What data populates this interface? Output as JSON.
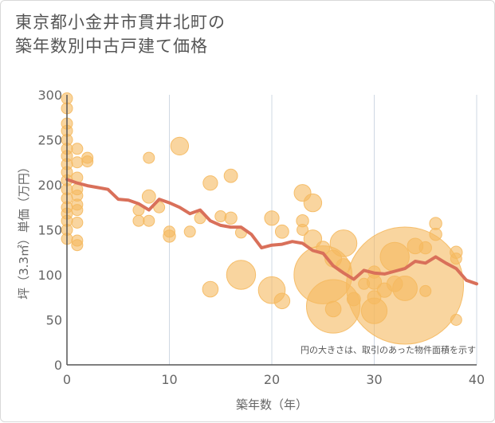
{
  "title": {
    "line1": "東京都小金井市貫井北町の",
    "line2": "築年数別中古戸建て価格"
  },
  "chart_data": {
    "type": "scatter",
    "xlabel": "築年数（年）",
    "ylabel": "坪（3.3㎡）単価（万円）",
    "xlim": [
      0,
      40
    ],
    "ylim": [
      0,
      300
    ],
    "xticks": [
      0,
      10,
      20,
      30,
      40
    ],
    "yticks": [
      0,
      50,
      100,
      150,
      200,
      250,
      300
    ],
    "grid": "vertical",
    "note": "円の大きさは、取引のあった物件面積を示す",
    "colors": {
      "bubble": "#f5b95f",
      "line": "#d9705a",
      "grid": "#cfd8e3",
      "axis": "#555555"
    },
    "bubbles": [
      {
        "x": 0,
        "y": 296,
        "s": 1
      },
      {
        "x": 0,
        "y": 285,
        "s": 1
      },
      {
        "x": 0,
        "y": 268,
        "s": 1
      },
      {
        "x": 0,
        "y": 260,
        "s": 1
      },
      {
        "x": 0,
        "y": 250,
        "s": 1
      },
      {
        "x": 0,
        "y": 240,
        "s": 1
      },
      {
        "x": 0,
        "y": 232,
        "s": 1
      },
      {
        "x": 0,
        "y": 223,
        "s": 1
      },
      {
        "x": 0,
        "y": 214,
        "s": 1
      },
      {
        "x": 0,
        "y": 205,
        "s": 1
      },
      {
        "x": 0,
        "y": 195,
        "s": 1
      },
      {
        "x": 0,
        "y": 185,
        "s": 1
      },
      {
        "x": 0,
        "y": 175,
        "s": 1
      },
      {
        "x": 0,
        "y": 168,
        "s": 1
      },
      {
        "x": 0,
        "y": 160,
        "s": 1
      },
      {
        "x": 0,
        "y": 150,
        "s": 1
      },
      {
        "x": 0,
        "y": 140,
        "s": 1
      },
      {
        "x": 1,
        "y": 240,
        "s": 1
      },
      {
        "x": 1,
        "y": 225,
        "s": 1
      },
      {
        "x": 1,
        "y": 208,
        "s": 1
      },
      {
        "x": 1,
        "y": 195,
        "s": 1
      },
      {
        "x": 1,
        "y": 188,
        "s": 1
      },
      {
        "x": 1,
        "y": 178,
        "s": 1
      },
      {
        "x": 1,
        "y": 172,
        "s": 1
      },
      {
        "x": 1,
        "y": 158,
        "s": 1
      },
      {
        "x": 1,
        "y": 138,
        "s": 1
      },
      {
        "x": 1,
        "y": 133,
        "s": 1
      },
      {
        "x": 2,
        "y": 230,
        "s": 1
      },
      {
        "x": 2,
        "y": 226,
        "s": 1
      },
      {
        "x": 7,
        "y": 172,
        "s": 1
      },
      {
        "x": 7,
        "y": 160,
        "s": 1
      },
      {
        "x": 8,
        "y": 230,
        "s": 1
      },
      {
        "x": 8,
        "y": 187,
        "s": 1.2
      },
      {
        "x": 8,
        "y": 160,
        "s": 1
      },
      {
        "x": 9,
        "y": 175,
        "s": 1
      },
      {
        "x": 10,
        "y": 148,
        "s": 1
      },
      {
        "x": 10,
        "y": 143,
        "s": 1.1
      },
      {
        "x": 11,
        "y": 243,
        "s": 1.6
      },
      {
        "x": 12,
        "y": 148,
        "s": 1
      },
      {
        "x": 13,
        "y": 163,
        "s": 1
      },
      {
        "x": 14,
        "y": 202,
        "s": 1.3
      },
      {
        "x": 14,
        "y": 84,
        "s": 1.4
      },
      {
        "x": 15,
        "y": 165,
        "s": 1
      },
      {
        "x": 16,
        "y": 210,
        "s": 1.2
      },
      {
        "x": 16,
        "y": 163,
        "s": 1.1
      },
      {
        "x": 17,
        "y": 147,
        "s": 1
      },
      {
        "x": 17,
        "y": 100,
        "s": 2.6
      },
      {
        "x": 20,
        "y": 163,
        "s": 1.3
      },
      {
        "x": 20,
        "y": 83,
        "s": 2.4
      },
      {
        "x": 21,
        "y": 148,
        "s": 1.2
      },
      {
        "x": 21,
        "y": 71,
        "s": 1.4
      },
      {
        "x": 23,
        "y": 191,
        "s": 1.5
      },
      {
        "x": 23,
        "y": 160,
        "s": 1.1
      },
      {
        "x": 23,
        "y": 150,
        "s": 1
      },
      {
        "x": 24,
        "y": 180,
        "s": 1.6
      },
      {
        "x": 24,
        "y": 140,
        "s": 1.6
      },
      {
        "x": 25,
        "y": 130,
        "s": 1.2
      },
      {
        "x": 25,
        "y": 100,
        "s": 5.2
      },
      {
        "x": 26,
        "y": 118,
        "s": 1.5
      },
      {
        "x": 26,
        "y": 65,
        "s": 4.8
      },
      {
        "x": 26,
        "y": 62,
        "s": 1.4
      },
      {
        "x": 27,
        "y": 135,
        "s": 2.4
      },
      {
        "x": 27,
        "y": 110,
        "s": 1.3
      },
      {
        "x": 28,
        "y": 73,
        "s": 1.2
      },
      {
        "x": 29,
        "y": 90,
        "s": 1
      },
      {
        "x": 30,
        "y": 103,
        "s": 1.1
      },
      {
        "x": 30,
        "y": 92,
        "s": 1.3
      },
      {
        "x": 30,
        "y": 75,
        "s": 1.2
      },
      {
        "x": 30,
        "y": 60,
        "s": 2.3
      },
      {
        "x": 31,
        "y": 83,
        "s": 1.3
      },
      {
        "x": 32,
        "y": 120,
        "s": 2.6
      },
      {
        "x": 32,
        "y": 90,
        "s": 1.4
      },
      {
        "x": 33,
        "y": 88,
        "s": 10.5
      },
      {
        "x": 33,
        "y": 85,
        "s": 2.2
      },
      {
        "x": 34,
        "y": 132,
        "s": 1.4
      },
      {
        "x": 35,
        "y": 130,
        "s": 1.1
      },
      {
        "x": 35,
        "y": 82,
        "s": 1
      },
      {
        "x": 36,
        "y": 157,
        "s": 1.1
      },
      {
        "x": 36,
        "y": 145,
        "s": 1.1
      },
      {
        "x": 38,
        "y": 125,
        "s": 1.1
      },
      {
        "x": 38,
        "y": 118,
        "s": 1
      },
      {
        "x": 38,
        "y": 50,
        "s": 1
      }
    ],
    "series": [
      {
        "x": [
          0,
          1,
          2,
          3,
          4,
          5,
          6,
          7,
          8,
          9,
          10,
          11,
          12,
          13,
          14,
          15,
          16,
          17,
          18,
          19,
          20,
          21,
          22,
          23,
          24,
          25,
          26,
          27,
          28,
          29,
          30,
          31,
          32,
          33,
          34,
          35,
          36,
          37,
          38,
          39,
          40
        ],
        "values": [
          206,
          202,
          199,
          197,
          195,
          184,
          183,
          179,
          172,
          184,
          180,
          175,
          168,
          172,
          160,
          155,
          153,
          153,
          145,
          130,
          133,
          134,
          137,
          135,
          127,
          124,
          110,
          102,
          95,
          105,
          102,
          101,
          104,
          107,
          115,
          113,
          120,
          113,
          107,
          94,
          90
        ]
      }
    ]
  }
}
